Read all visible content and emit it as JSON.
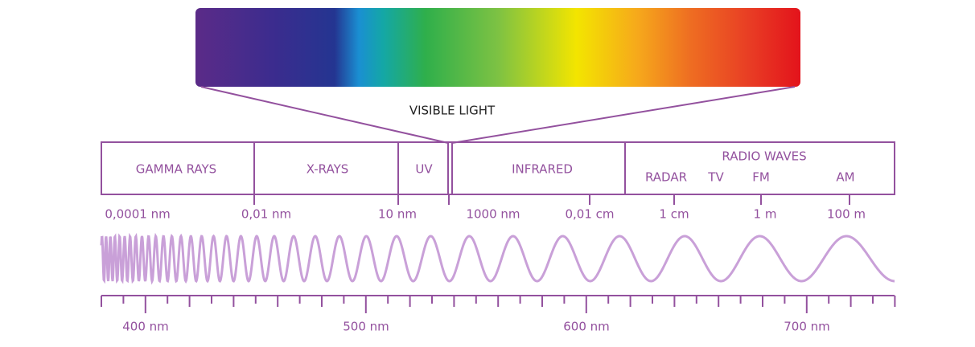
{
  "visible_light": {
    "label": "VISIBLE LIGHT"
  },
  "bands": [
    "GAMMA RAYS",
    "X-RAYS",
    "UV",
    "INFRARED"
  ],
  "radio": {
    "title": "RADIO WAVES",
    "sub_bands": [
      "RADAR",
      "TV",
      "FM",
      "AM"
    ]
  },
  "wavelength_scale": [
    "0,0001 nm",
    "0,01 nm",
    "10 nm",
    "1000 nm",
    "0,01 cm",
    "1 cm",
    "1 m",
    "100 m"
  ],
  "visible_scale": [
    "400 nm",
    "500 nm",
    "600 nm",
    "700 nm"
  ]
}
